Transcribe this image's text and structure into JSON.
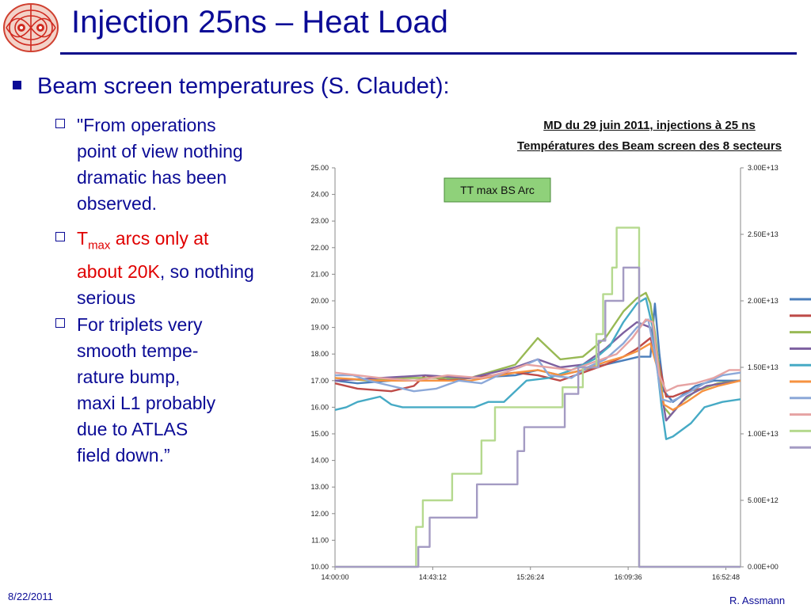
{
  "slide": {
    "title": "Injection 25ns – Heat Load",
    "bullet": "Beam screen temperatures (S. Claudet):",
    "sub1": [
      "\"From operations",
      "point of view nothing",
      "dramatic has been",
      "observed."
    ],
    "sub2_t": "T",
    "sub2_sub": "max",
    "sub2_red_rest": " arcs only at",
    "sub2_red_line2": "about 20K",
    "sub2_line2_rest": ", so nothing",
    "sub2_line3": "serious",
    "sub3": [
      "For triplets very",
      "smooth tempe-",
      "rature bump,",
      "maxi L1 probably",
      "due to ATLAS",
      "field down.”"
    ],
    "footer_date": "8/22/2011",
    "footer_author": "R. Assmann"
  },
  "chart_data": {
    "type": "line",
    "title": "MD du 29 juin 2011, injections à 25 ns",
    "subtitle": "Températures des Beam screen des 8 secteurs",
    "annotation": "TT max BS Arc",
    "x_ticks": [
      "14:00:00",
      "14:43:12",
      "15:26:24",
      "16:09:36",
      "16:52:48"
    ],
    "y_ticks": [
      "10.00",
      "11.00",
      "12.00",
      "13.00",
      "14.00",
      "15.00",
      "16.00",
      "17.00",
      "18.00",
      "19.00",
      "20.00",
      "21.00",
      "22.00",
      "23.00",
      "24.00",
      "25.00"
    ],
    "y2_ticks": [
      "0.00E+00",
      "5.00E+12",
      "1.00E+13",
      "1.50E+13",
      "2.00E+13",
      "2.50E+13",
      "3.00E+13"
    ],
    "ylim": [
      10,
      25
    ],
    "y2lim": [
      0,
      30000000000000.0
    ],
    "xlim": [
      0,
      180
    ],
    "legend_colors": [
      "#4a7ebb",
      "#be4b48",
      "#98b954",
      "#7d60a0",
      "#46aac5",
      "#f69240",
      "#8ca8d8",
      "#e6a3a3",
      "#b5d98e",
      "#a49bc3"
    ],
    "series": [
      {
        "color": "#4a7ebb",
        "axis": "y",
        "points": [
          [
            0,
            17.0
          ],
          [
            10,
            16.9
          ],
          [
            25,
            17.0
          ],
          [
            45,
            17.0
          ],
          [
            60,
            17.1
          ],
          [
            80,
            17.2
          ],
          [
            90,
            17.4
          ],
          [
            100,
            17.2
          ],
          [
            110,
            17.4
          ],
          [
            120,
            17.6
          ],
          [
            130,
            17.8
          ],
          [
            135,
            17.9
          ],
          [
            140,
            17.9
          ],
          [
            142,
            19.9
          ],
          [
            144,
            18.0
          ],
          [
            146,
            16.6
          ],
          [
            150,
            16.2
          ],
          [
            155,
            16.5
          ],
          [
            160,
            16.8
          ],
          [
            168,
            17.0
          ],
          [
            180,
            17.0
          ]
        ]
      },
      {
        "color": "#be4b48",
        "axis": "y",
        "points": [
          [
            0,
            16.9
          ],
          [
            10,
            16.7
          ],
          [
            25,
            16.6
          ],
          [
            35,
            16.8
          ],
          [
            40,
            17.2
          ],
          [
            50,
            17.0
          ],
          [
            60,
            17.1
          ],
          [
            70,
            17.2
          ],
          [
            80,
            17.3
          ],
          [
            90,
            17.2
          ],
          [
            100,
            17.0
          ],
          [
            110,
            17.3
          ],
          [
            120,
            17.6
          ],
          [
            128,
            17.9
          ],
          [
            134,
            18.2
          ],
          [
            140,
            18.6
          ],
          [
            144,
            17.6
          ],
          [
            147,
            16.4
          ],
          [
            150,
            16.4
          ],
          [
            156,
            16.6
          ],
          [
            163,
            16.7
          ],
          [
            170,
            16.9
          ],
          [
            180,
            17.0
          ]
        ]
      },
      {
        "color": "#98b954",
        "axis": "y",
        "points": [
          [
            0,
            17.1
          ],
          [
            15,
            17.0
          ],
          [
            30,
            17.1
          ],
          [
            60,
            17.1
          ],
          [
            80,
            17.6
          ],
          [
            90,
            18.6
          ],
          [
            95,
            18.2
          ],
          [
            100,
            17.8
          ],
          [
            110,
            17.9
          ],
          [
            120,
            18.6
          ],
          [
            128,
            19.6
          ],
          [
            134,
            20.1
          ],
          [
            138,
            20.3
          ],
          [
            140,
            19.9
          ],
          [
            142,
            18.8
          ],
          [
            146,
            16.0
          ],
          [
            149,
            15.7
          ],
          [
            154,
            16.2
          ],
          [
            160,
            16.6
          ],
          [
            170,
            16.9
          ],
          [
            180,
            17.0
          ]
        ]
      },
      {
        "color": "#7d60a0",
        "axis": "y",
        "points": [
          [
            0,
            17.0
          ],
          [
            20,
            17.1
          ],
          [
            40,
            17.2
          ],
          [
            60,
            17.1
          ],
          [
            80,
            17.5
          ],
          [
            90,
            17.8
          ],
          [
            100,
            17.5
          ],
          [
            110,
            17.6
          ],
          [
            120,
            18.2
          ],
          [
            128,
            18.8
          ],
          [
            134,
            19.2
          ],
          [
            140,
            19.0
          ],
          [
            144,
            17.0
          ],
          [
            147,
            15.5
          ],
          [
            150,
            15.8
          ],
          [
            156,
            16.4
          ],
          [
            165,
            16.8
          ],
          [
            180,
            17.0
          ]
        ]
      },
      {
        "color": "#46aac5",
        "axis": "y",
        "points": [
          [
            0,
            15.9
          ],
          [
            5,
            16.0
          ],
          [
            10,
            16.2
          ],
          [
            20,
            16.4
          ],
          [
            25,
            16.1
          ],
          [
            30,
            16.0
          ],
          [
            40,
            16.0
          ],
          [
            50,
            16.0
          ],
          [
            62,
            16.0
          ],
          [
            68,
            16.2
          ],
          [
            75,
            16.2
          ],
          [
            85,
            17.0
          ],
          [
            95,
            17.1
          ],
          [
            105,
            17.4
          ],
          [
            115,
            17.8
          ],
          [
            122,
            18.3
          ],
          [
            128,
            19.2
          ],
          [
            134,
            19.9
          ],
          [
            138,
            20.1
          ],
          [
            141,
            19.0
          ],
          [
            145,
            16.0
          ],
          [
            147,
            14.8
          ],
          [
            150,
            14.9
          ],
          [
            158,
            15.4
          ],
          [
            164,
            16.0
          ],
          [
            172,
            16.2
          ],
          [
            180,
            16.3
          ]
        ]
      },
      {
        "color": "#f69240",
        "axis": "y",
        "points": [
          [
            0,
            17.1
          ],
          [
            20,
            17.0
          ],
          [
            40,
            17.0
          ],
          [
            60,
            17.0
          ],
          [
            80,
            17.3
          ],
          [
            90,
            17.4
          ],
          [
            100,
            17.2
          ],
          [
            110,
            17.4
          ],
          [
            120,
            17.7
          ],
          [
            128,
            17.9
          ],
          [
            134,
            18.1
          ],
          [
            140,
            18.4
          ],
          [
            143,
            17.5
          ],
          [
            146,
            16.1
          ],
          [
            150,
            15.9
          ],
          [
            156,
            16.2
          ],
          [
            163,
            16.6
          ],
          [
            170,
            16.8
          ],
          [
            180,
            17.0
          ]
        ]
      },
      {
        "color": "#8ca8d8",
        "axis": "y",
        "points": [
          [
            0,
            17.2
          ],
          [
            8,
            17.2
          ],
          [
            15,
            17.0
          ],
          [
            25,
            16.8
          ],
          [
            35,
            16.6
          ],
          [
            45,
            16.7
          ],
          [
            55,
            17.0
          ],
          [
            65,
            16.9
          ],
          [
            75,
            17.3
          ],
          [
            82,
            17.5
          ],
          [
            90,
            17.8
          ],
          [
            95,
            17.2
          ],
          [
            105,
            17.1
          ],
          [
            112,
            17.5
          ],
          [
            120,
            17.8
          ],
          [
            128,
            18.4
          ],
          [
            134,
            19.0
          ],
          [
            139,
            19.3
          ],
          [
            142,
            18.0
          ],
          [
            145,
            16.3
          ],
          [
            149,
            16.2
          ],
          [
            156,
            16.5
          ],
          [
            164,
            16.9
          ],
          [
            172,
            17.2
          ],
          [
            180,
            17.3
          ]
        ]
      },
      {
        "color": "#e6a3a3",
        "axis": "y",
        "points": [
          [
            0,
            17.3
          ],
          [
            10,
            17.2
          ],
          [
            20,
            17.1
          ],
          [
            35,
            17.0
          ],
          [
            50,
            17.2
          ],
          [
            65,
            17.1
          ],
          [
            75,
            17.3
          ],
          [
            85,
            17.6
          ],
          [
            95,
            17.5
          ],
          [
            105,
            17.4
          ],
          [
            115,
            17.7
          ],
          [
            125,
            18.0
          ],
          [
            132,
            18.6
          ],
          [
            138,
            19.3
          ],
          [
            141,
            19.2
          ],
          [
            144,
            17.2
          ],
          [
            147,
            16.6
          ],
          [
            152,
            16.8
          ],
          [
            160,
            16.9
          ],
          [
            168,
            17.1
          ],
          [
            175,
            17.4
          ],
          [
            180,
            17.4
          ]
        ]
      },
      {
        "color": "#b5d98e",
        "axis": "y2",
        "points": [
          [
            0,
            0
          ],
          [
            36,
            0
          ],
          [
            36,
            3000000000000.0
          ],
          [
            39,
            3000000000000.0
          ],
          [
            39,
            5000000000000.0
          ],
          [
            52,
            5000000000000.0
          ],
          [
            52,
            7000000000000.0
          ],
          [
            65,
            7000000000000.0
          ],
          [
            65,
            9500000000000.0
          ],
          [
            71,
            9500000000000.0
          ],
          [
            71,
            12000000000000.0
          ],
          [
            101,
            12000000000000.0
          ],
          [
            101,
            13500000000000.0
          ],
          [
            110,
            13500000000000.0
          ],
          [
            110,
            15000000000000.0
          ],
          [
            116,
            15000000000000.0
          ],
          [
            116,
            17500000000000.0
          ],
          [
            119,
            17500000000000.0
          ],
          [
            119,
            20500000000000.0
          ],
          [
            123,
            20500000000000.0
          ],
          [
            123,
            22500000000000.0
          ],
          [
            125,
            22500000000000.0
          ],
          [
            125,
            25500000000000.0
          ],
          [
            135,
            25500000000000.0
          ],
          [
            135,
            0
          ],
          [
            180,
            0
          ]
        ]
      },
      {
        "color": "#a49bc3",
        "axis": "y2",
        "points": [
          [
            0,
            0
          ],
          [
            37,
            0
          ],
          [
            37,
            1500000000000.0
          ],
          [
            42,
            1500000000000.0
          ],
          [
            42,
            3700000000000.0
          ],
          [
            63,
            3700000000000.0
          ],
          [
            63,
            6200000000000.0
          ],
          [
            81,
            6200000000000.0
          ],
          [
            81,
            8700000000000.0
          ],
          [
            84,
            8700000000000.0
          ],
          [
            84,
            10500000000000.0
          ],
          [
            102,
            10500000000000.0
          ],
          [
            102,
            13000000000000.0
          ],
          [
            108,
            13000000000000.0
          ],
          [
            108,
            15000000000000.0
          ],
          [
            117,
            15000000000000.0
          ],
          [
            117,
            17000000000000.0
          ],
          [
            120,
            17000000000000.0
          ],
          [
            120,
            20000000000000.0
          ],
          [
            128,
            20000000000000.0
          ],
          [
            128,
            22500000000000.0
          ],
          [
            135,
            22500000000000.0
          ],
          [
            135,
            0
          ],
          [
            180,
            0
          ]
        ]
      }
    ]
  }
}
